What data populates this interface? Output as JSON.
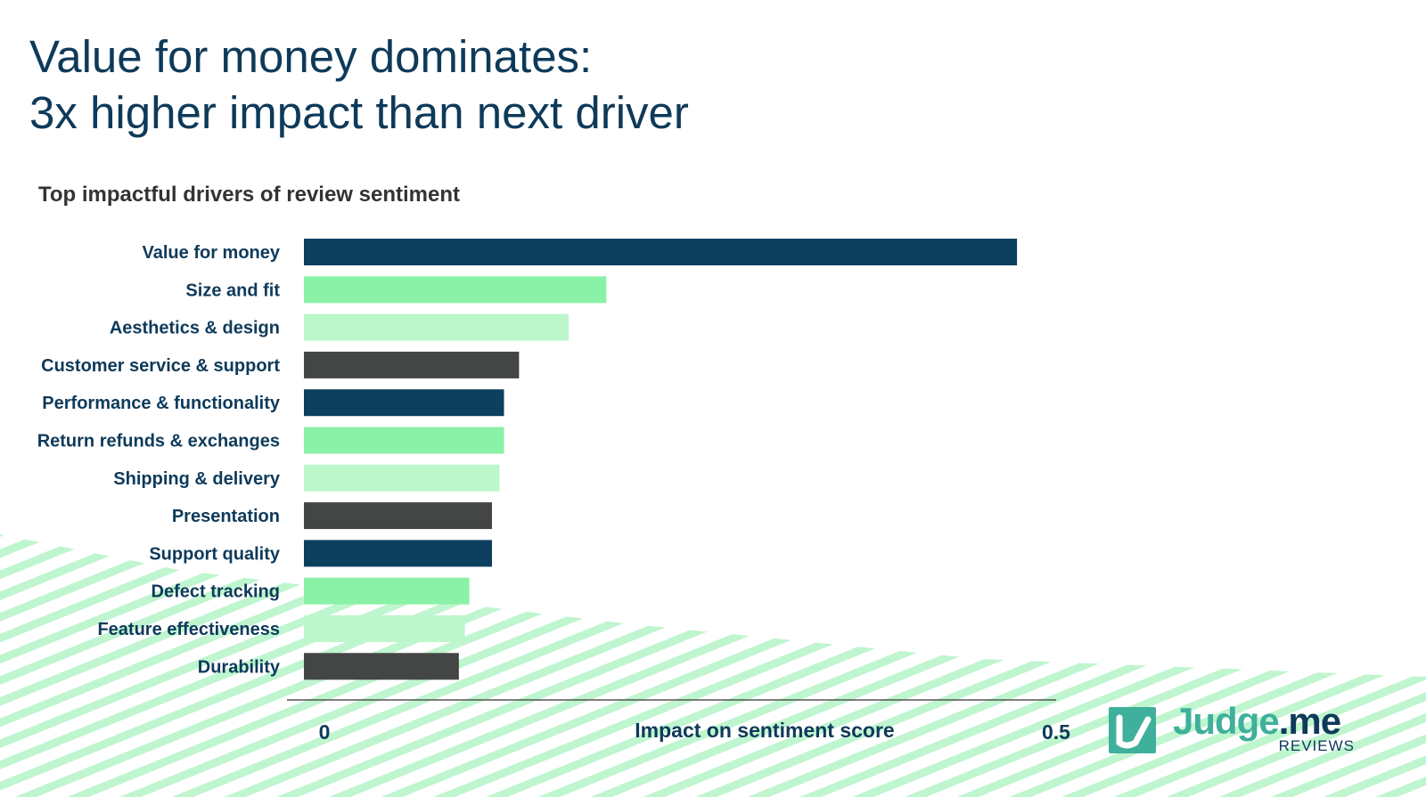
{
  "header": {
    "title_line1": "Value for money dominates:",
    "title_line2": "3x higher impact than next driver"
  },
  "chart_data": {
    "type": "bar",
    "orientation": "horizontal",
    "title": "Top impactful drivers of review sentiment",
    "xlabel": "Impact on sentiment score",
    "ylabel": "",
    "xlim": [
      0,
      0.5
    ],
    "x_tick_labels": [
      "0",
      "0.5"
    ],
    "grid": false,
    "categories": [
      "Value for money",
      "Size and fit",
      "Aesthetics & design",
      "Customer service & support",
      "Performance & functionality",
      "Return refunds & exchanges",
      "Shipping & delivery",
      "Presentation",
      "Support quality",
      "Defect tracking",
      "Feature effectiveness",
      "Durability"
    ],
    "values": [
      0.474,
      0.201,
      0.176,
      0.143,
      0.133,
      0.133,
      0.13,
      0.125,
      0.125,
      0.11,
      0.107,
      0.103
    ],
    "bar_colors": [
      "#0d3f5e",
      "#8af2a6",
      "#bbf7cb",
      "#444545",
      "#0d3f5e",
      "#8af2a6",
      "#bbf7cb",
      "#444545",
      "#0d3f5e",
      "#8af2a6",
      "#bbf7cb",
      "#444545"
    ]
  },
  "logo": {
    "word": "Judge",
    "suffix": ".me",
    "sub": "REVIEWS"
  },
  "colors": {
    "text": "#0e3a5a",
    "stripe": "#bff5cf",
    "brand": "#3fb09b"
  }
}
